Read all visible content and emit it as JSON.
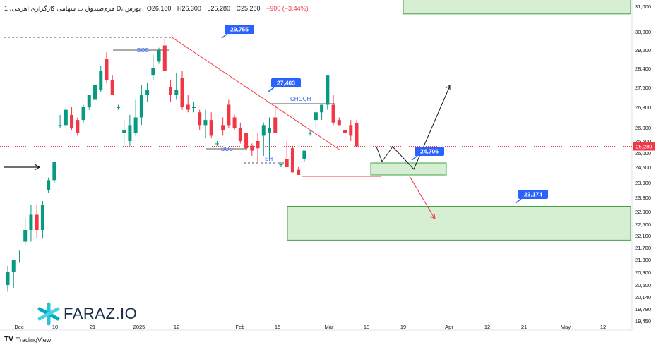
{
  "header": {
    "symbol": "1 ،هرم‌صندوق ت‌ سهامی کارگزاری‌ اهرمی D، بورس",
    "open": "O26,180",
    "high": "H26,300",
    "low": "L25,280",
    "close": "C25,280",
    "change": "−900 (−3.44%)"
  },
  "footer": {
    "brand": "TradingView"
  },
  "watermark": {
    "text": "FARAZ.IO",
    "icon": "faraz-star-icon"
  },
  "colors": {
    "up": "#089981",
    "down": "#f23645",
    "zone_fill": "#d6efd3",
    "zone_border": "#43a047",
    "label_bg": "#2962ff",
    "current_price_bg": "#f23645"
  },
  "chart_data": {
    "type": "candlestick",
    "y_axis": {
      "min": 19300,
      "max": 31400,
      "ticks": [
        31000,
        30000,
        29200,
        28400,
        27600,
        26800,
        26000,
        25500,
        25000,
        24500,
        23900,
        23300,
        22900,
        22500,
        22100,
        21700,
        21300,
        20900,
        20500,
        20140,
        19780,
        19450
      ]
    },
    "x_axis": {
      "labels": [
        "Dec",
        "10",
        "21",
        "2025",
        "12",
        "Feb",
        "15",
        "Mar",
        "10",
        "19",
        "Apr",
        "12",
        "21",
        "May",
        "12"
      ]
    },
    "current_price": "25,280",
    "candles": [
      {
        "o": 20500,
        "h": 21100,
        "l": 20300,
        "c": 20900
      },
      {
        "o": 20900,
        "h": 21300,
        "l": 20400,
        "c": 21300
      },
      {
        "o": 21300,
        "h": 21600,
        "l": 21200,
        "c": 21300
      },
      {
        "o": 21900,
        "h": 22700,
        "l": 21800,
        "c": 22300
      },
      {
        "o": 22300,
        "h": 23100,
        "l": 21900,
        "c": 22800
      },
      {
        "o": 22800,
        "h": 23100,
        "l": 22000,
        "c": 22300
      },
      {
        "o": 22300,
        "h": 23200,
        "l": 22000,
        "c": 23100
      },
      {
        "o": 23600,
        "h": 24100,
        "l": 23500,
        "c": 24000
      },
      {
        "o": 24000,
        "h": 24700,
        "l": 23900,
        "c": 24700
      },
      {
        "o": 26100,
        "h": 26500,
        "l": 26000,
        "c": 26100
      },
      {
        "o": 26100,
        "h": 26800,
        "l": 26000,
        "c": 26700
      },
      {
        "o": 26500,
        "h": 26800,
        "l": 25900,
        "c": 26000
      },
      {
        "o": 26300,
        "h": 26400,
        "l": 25700,
        "c": 25800
      },
      {
        "o": 26300,
        "h": 26900,
        "l": 26200,
        "c": 26800
      },
      {
        "o": 26800,
        "h": 27300,
        "l": 26700,
        "c": 27300
      },
      {
        "o": 27100,
        "h": 27700,
        "l": 26900,
        "c": 27700
      },
      {
        "o": 27500,
        "h": 28500,
        "l": 27400,
        "c": 28300
      },
      {
        "o": 28800,
        "h": 29100,
        "l": 27800,
        "c": 27900
      },
      {
        "o": 27900,
        "h": 28100,
        "l": 27300,
        "c": 27300
      },
      {
        "o": 26800,
        "h": 26900,
        "l": 26700,
        "c": 26800
      },
      {
        "o": 25800,
        "h": 26300,
        "l": 25300,
        "c": 25900
      },
      {
        "o": 25500,
        "h": 26500,
        "l": 25300,
        "c": 26100
      },
      {
        "o": 25800,
        "h": 27100,
        "l": 25700,
        "c": 26400
      },
      {
        "o": 26400,
        "h": 27700,
        "l": 26100,
        "c": 27300
      },
      {
        "o": 27300,
        "h": 27800,
        "l": 27000,
        "c": 27500
      },
      {
        "o": 28100,
        "h": 29000,
        "l": 27900,
        "c": 28400
      },
      {
        "o": 28700,
        "h": 29300,
        "l": 28600,
        "c": 29200
      },
      {
        "o": 29400,
        "h": 29800,
        "l": 28300,
        "c": 28300
      },
      {
        "o": 27600,
        "h": 27900,
        "l": 27000,
        "c": 27300
      },
      {
        "o": 27300,
        "h": 28200,
        "l": 27100,
        "c": 27500
      },
      {
        "o": 28000,
        "h": 28300,
        "l": 26700,
        "c": 26800
      },
      {
        "o": 26900,
        "h": 27300,
        "l": 26600,
        "c": 26700
      },
      {
        "o": 26800,
        "h": 27000,
        "l": 26600,
        "c": 26800
      },
      {
        "o": 26600,
        "h": 26700,
        "l": 25900,
        "c": 26100
      },
      {
        "o": 26100,
        "h": 26700,
        "l": 25600,
        "c": 26300
      },
      {
        "o": 26300,
        "h": 26600,
        "l": 25600,
        "c": 25700
      },
      {
        "o": 25400,
        "h": 25500,
        "l": 25300,
        "c": 25400
      },
      {
        "o": 26100,
        "h": 26400,
        "l": 25700,
        "c": 25900
      },
      {
        "o": 26900,
        "h": 27100,
        "l": 26000,
        "c": 26100
      },
      {
        "o": 26400,
        "h": 26500,
        "l": 25900,
        "c": 26000
      },
      {
        "o": 26000,
        "h": 26200,
        "l": 25400,
        "c": 25500
      },
      {
        "o": 25800,
        "h": 25900,
        "l": 25000,
        "c": 25200
      },
      {
        "o": 25300,
        "h": 25400,
        "l": 24900,
        "c": 25100
      },
      {
        "o": 25500,
        "h": 25800,
        "l": 24700,
        "c": 25200
      },
      {
        "o": 25700,
        "h": 26200,
        "l": 24900,
        "c": 26100
      },
      {
        "o": 25800,
        "h": 26400,
        "l": 24800,
        "c": 26000
      },
      {
        "o": 26400,
        "h": 26900,
        "l": 25800,
        "c": 25800
      },
      {
        "o": 24600,
        "h": 24700,
        "l": 24500,
        "c": 24600
      },
      {
        "o": 24800,
        "h": 25500,
        "l": 24500,
        "c": 24500
      },
      {
        "o": 25200,
        "h": 25300,
        "l": 24300,
        "c": 24300
      },
      {
        "o": 24400,
        "h": 24500,
        "l": 24200,
        "c": 24200
      },
      {
        "o": 24800,
        "h": 25100,
        "l": 24700,
        "c": 25100
      },
      {
        "o": 25800,
        "h": 25900,
        "l": 25700,
        "c": 25800
      },
      {
        "o": 26300,
        "h": 26700,
        "l": 26000,
        "c": 26600
      },
      {
        "o": 26600,
        "h": 26900,
        "l": 26300,
        "c": 26900
      },
      {
        "o": 26900,
        "h": 28100,
        "l": 26700,
        "c": 28100
      },
      {
        "o": 26900,
        "h": 27300,
        "l": 26100,
        "c": 26200
      },
      {
        "o": 26300,
        "h": 26400,
        "l": 26100,
        "c": 26100
      },
      {
        "o": 25900,
        "h": 26200,
        "l": 25600,
        "c": 25800
      },
      {
        "o": 26100,
        "h": 26300,
        "l": 25500,
        "c": 25700
      },
      {
        "o": 26180,
        "h": 26300,
        "l": 25280,
        "c": 25280
      }
    ],
    "zones": [
      {
        "from": 31400,
        "to": 30700,
        "label": ""
      },
      {
        "from": 24650,
        "to": 24200,
        "label": ""
      },
      {
        "from": 23050,
        "to": 21950,
        "label": ""
      }
    ],
    "price_labels": [
      "29,755",
      "27,403",
      "24,706",
      "23,174"
    ],
    "annotations": [
      "BOS",
      "BOS",
      "CHOCH",
      "SH"
    ]
  }
}
